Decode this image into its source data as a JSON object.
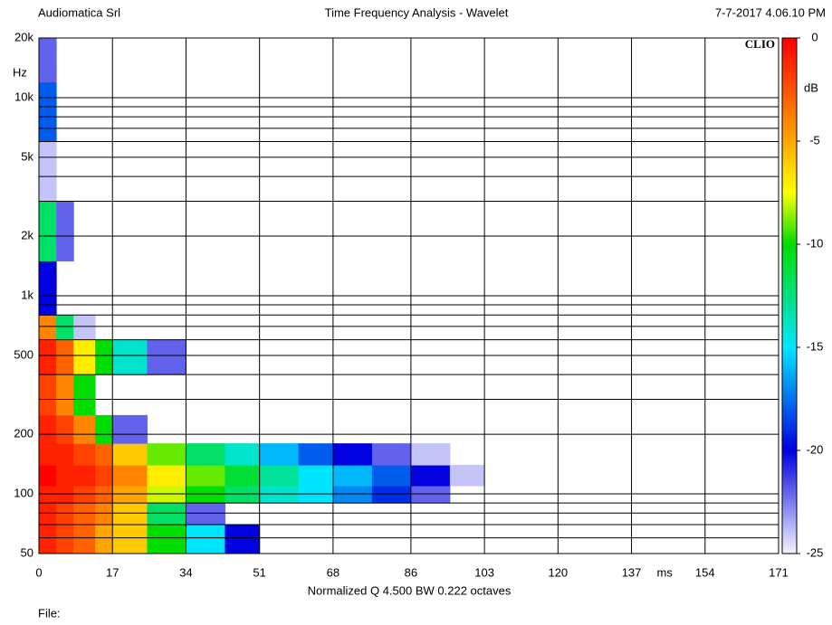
{
  "header": {
    "left": "Audiomatica Srl",
    "center": "Time Frequency Analysis - Wavelet",
    "right": "7-7-2017 4.06.10 PM"
  },
  "footer": {
    "file": "File:"
  },
  "chart_data": {
    "type": "wavelet",
    "brand": "CLIO",
    "y_unit": "Hz",
    "x_unit": "ms",
    "z_unit": "dB",
    "xlabel": "Normalized  Q 4.500 BW 0.222 octaves",
    "xlim": [
      0,
      171
    ],
    "xticks": [
      0,
      17,
      34,
      51,
      68,
      86,
      103,
      120,
      137,
      154,
      171
    ],
    "ylim": [
      50,
      20000
    ],
    "log_y": true,
    "yticks": [
      {
        "value": 50,
        "label": "50"
      },
      {
        "value": 100,
        "label": "100"
      },
      {
        "value": 200,
        "label": "200"
      },
      {
        "value": 500,
        "label": "500"
      },
      {
        "value": 1000,
        "label": "1k"
      },
      {
        "value": 2000,
        "label": "2k"
      },
      {
        "value": 5000,
        "label": "5k"
      },
      {
        "value": 10000,
        "label": "10k"
      },
      {
        "value": 20000,
        "label": "20k"
      }
    ],
    "yminor": [
      60,
      70,
      80,
      90,
      300,
      400,
      600,
      700,
      800,
      900,
      3000,
      4000,
      6000,
      7000,
      8000,
      9000
    ],
    "grid": true,
    "zlim": [
      -25,
      0
    ],
    "zticks": [
      0,
      -5,
      -10,
      -15,
      -20,
      -25
    ],
    "colorscale": [
      {
        "value": 0,
        "color": "#ff0000"
      },
      {
        "value": -5,
        "color": "#ffa500"
      },
      {
        "value": -7.5,
        "color": "#ffff00"
      },
      {
        "value": -10,
        "color": "#00dd00"
      },
      {
        "value": -15,
        "color": "#00e5ff"
      },
      {
        "value": -20,
        "color": "#0000e0"
      },
      {
        "value": -25,
        "color": "#f5f5ff"
      }
    ],
    "xbins": [
      0,
      4,
      8,
      13,
      17,
      25,
      34,
      43,
      51,
      60,
      68,
      77,
      86,
      95,
      103
    ],
    "ybins": [
      50,
      70,
      90,
      110,
      140,
      180,
      250,
      400,
      600,
      800,
      1500,
      3000,
      6000,
      12000,
      20000
    ],
    "z": [
      [
        -1,
        -2,
        -3,
        -5,
        -6,
        -10,
        -15,
        -20,
        null,
        null,
        null,
        null,
        null,
        null
      ],
      [
        -1,
        -2,
        -3,
        -4,
        -6,
        -12,
        -22,
        null,
        null,
        null,
        null,
        null,
        null,
        null
      ],
      [
        -1,
        -1,
        -2,
        -3,
        -5,
        -8,
        -10,
        -12,
        -14,
        -15,
        -17,
        -19,
        -22,
        null
      ],
      [
        0,
        -1,
        -1,
        -2,
        -4,
        -7,
        -9,
        -11,
        -13,
        -15,
        -16,
        -18,
        -20,
        -24
      ],
      [
        -1,
        -1,
        -2,
        -3,
        -6,
        -9,
        -12,
        -14,
        -16,
        -18,
        -20,
        -22,
        -24,
        null
      ],
      [
        -1,
        -2,
        -4,
        -10,
        -22,
        null,
        null,
        null,
        null,
        null,
        null,
        null,
        null,
        null
      ],
      [
        -2,
        -4,
        -10,
        null,
        null,
        null,
        null,
        null,
        null,
        null,
        null,
        null,
        null,
        null
      ],
      [
        -1,
        -3,
        -7,
        -10,
        -14,
        -22,
        null,
        null,
        null,
        null,
        null,
        null,
        null,
        null
      ],
      [
        -4,
        -12,
        -24,
        null,
        null,
        null,
        null,
        null,
        null,
        null,
        null,
        null,
        null,
        null
      ],
      [
        -20,
        null,
        null,
        null,
        null,
        null,
        null,
        null,
        null,
        null,
        null,
        null,
        null,
        null
      ],
      [
        -12,
        -22,
        null,
        null,
        null,
        null,
        null,
        null,
        null,
        null,
        null,
        null,
        null,
        null
      ],
      [
        -24,
        null,
        null,
        null,
        null,
        null,
        null,
        null,
        null,
        null,
        null,
        null,
        null,
        null
      ],
      [
        -18,
        null,
        null,
        null,
        null,
        null,
        null,
        null,
        null,
        null,
        null,
        null,
        null,
        null
      ],
      [
        -22,
        null,
        null,
        null,
        null,
        null,
        null,
        null,
        null,
        null,
        null,
        null,
        null,
        null
      ]
    ]
  }
}
